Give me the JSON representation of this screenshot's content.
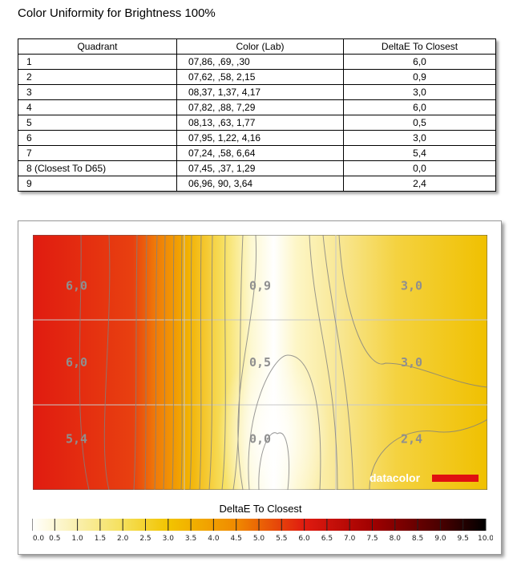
{
  "page": {
    "title": "Color Uniformity for Brightness 100%"
  },
  "table": {
    "headers": [
      "Quadrant",
      "Color (Lab)",
      "DeltaE To Closest"
    ],
    "rows": [
      [
        "1",
        "07,86,    ,69,    ,30",
        "6,0"
      ],
      [
        "2",
        "07,62,    ,58,   2,15",
        "0,9"
      ],
      [
        "3",
        "08,37,   1,37,   4,17",
        "3,0"
      ],
      [
        "4",
        "07,82,    ,88,   7,29",
        "6,0"
      ],
      [
        "5",
        "08,13,    ,63,   1,77",
        "0,5"
      ],
      [
        "6",
        "07,95,   1,22,   4,16",
        "3,0"
      ],
      [
        "7",
        "07,24,    ,58,   6,64",
        "5,4"
      ],
      [
        "8 (Closest To D65)",
        "07,45,    ,37,   1,29",
        "0,0"
      ],
      [
        "9",
        "06,96,    90,   3,64",
        "2,4"
      ]
    ]
  },
  "chart_data": {
    "type": "heatmap",
    "title": "DeltaE To Closest",
    "grid": [
      [
        "6,0",
        "0,9",
        "3,0"
      ],
      [
        "6,0",
        "0,5",
        "3,0"
      ],
      [
        "5,4",
        "0,0",
        "2,4"
      ]
    ],
    "values": [
      [
        6.0,
        0.9,
        3.0
      ],
      [
        6.0,
        0.5,
        3.0
      ],
      [
        5.4,
        0.0,
        2.4
      ]
    ],
    "colorbar": {
      "min": 0,
      "max": 10,
      "ticks": [
        "0.0",
        "0.5",
        "1.0",
        "1.5",
        "2.0",
        "2.5",
        "3.0",
        "3.5",
        "4.0",
        "4.5",
        "5.0",
        "5.5",
        "6.0",
        "6.5",
        "7.0",
        "7.5",
        "8.0",
        "8.5",
        "9.0",
        "9.5",
        "10.0"
      ]
    },
    "watermark": "datacolor",
    "colors": {
      "low": "#ffffff",
      "yellow": "#f2c400",
      "orange": "#f08a00",
      "red": "#e01b10",
      "dark": "#000000"
    }
  }
}
